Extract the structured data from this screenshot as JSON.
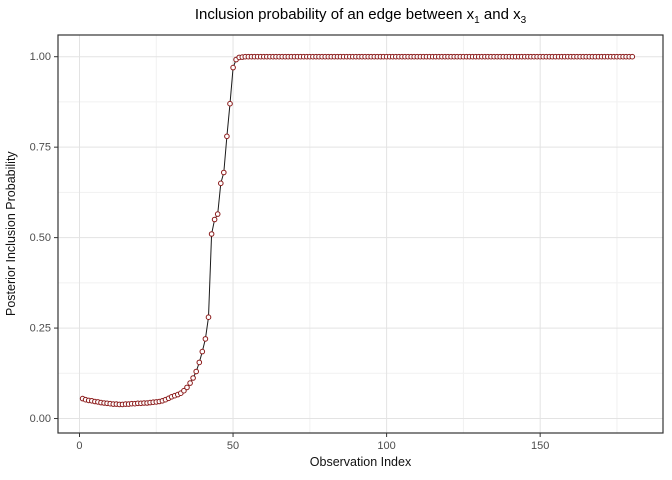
{
  "title": {
    "prefix": "Inclusion probability of an edge between x",
    "sub1": "1",
    "middle": " and x",
    "sub2": "3"
  },
  "chart_data": {
    "type": "line",
    "title": "Inclusion probability of an edge between x_1 and x_3",
    "xlabel": "Observation Index",
    "ylabel": "Posterior Inclusion Probability",
    "marker": "open-circle",
    "legend": "none",
    "grid": true,
    "xlim": [
      -7,
      190
    ],
    "ylim": [
      -0.04,
      1.06
    ],
    "x_major_ticks": [
      0,
      50,
      100,
      150
    ],
    "x_tick_labels": [
      "0",
      "50",
      "100",
      "150"
    ],
    "x_minor_ticks": [
      25,
      75,
      125,
      175
    ],
    "y_major_ticks": [
      0,
      0.25,
      0.5,
      0.75,
      1
    ],
    "y_tick_labels": [
      "0.00",
      "0.25",
      "0.50",
      "0.75",
      "1.00"
    ],
    "y_minor_ticks": [
      0.125,
      0.375,
      0.625,
      0.875
    ],
    "x_start_index": 1,
    "values": [
      0.055,
      0.052,
      0.05,
      0.049,
      0.047,
      0.046,
      0.044,
      0.043,
      0.042,
      0.041,
      0.04,
      0.04,
      0.039,
      0.039,
      0.04,
      0.04,
      0.041,
      0.041,
      0.042,
      0.042,
      0.043,
      0.043,
      0.044,
      0.045,
      0.046,
      0.047,
      0.049,
      0.052,
      0.056,
      0.06,
      0.063,
      0.066,
      0.07,
      0.077,
      0.086,
      0.098,
      0.112,
      0.13,
      0.155,
      0.185,
      0.22,
      0.28,
      0.51,
      0.55,
      0.565,
      0.65,
      0.68,
      0.78,
      0.87,
      0.97,
      0.992,
      0.998,
      0.999,
      1,
      1,
      1,
      1,
      1,
      1,
      1,
      1,
      1,
      1,
      1,
      1,
      1,
      1,
      1,
      1,
      1,
      1,
      1,
      1,
      1,
      1,
      1,
      1,
      1,
      1,
      1,
      1,
      1,
      1,
      1,
      1,
      1,
      1,
      1,
      1,
      1,
      1,
      1,
      1,
      1,
      1,
      1,
      1,
      1,
      1,
      1,
      1,
      1,
      1,
      1,
      1,
      1,
      1,
      1,
      1,
      1,
      1,
      1,
      1,
      1,
      1,
      1,
      1,
      1,
      1,
      1,
      1,
      1,
      1,
      1,
      1,
      1,
      1,
      1,
      1,
      1,
      1,
      1,
      1,
      1,
      1,
      1,
      1,
      1,
      1,
      1,
      1,
      1,
      1,
      1,
      1,
      1,
      1,
      1,
      1,
      1,
      1,
      1,
      1,
      1,
      1,
      1,
      1,
      1,
      1,
      1,
      1,
      1,
      1,
      1,
      1,
      1,
      1,
      1,
      1,
      1,
      1,
      1,
      1,
      1,
      1,
      1,
      1,
      1,
      1,
      1
    ],
    "colors": {
      "point_stroke": "#8B1A1A",
      "point_fill": "#ffffff",
      "line": "#1a1a1a",
      "grid_major": "#e3e3e3",
      "grid_minor": "#f1f1f1",
      "panel_border": "#343434",
      "tick_mark": "#343434",
      "tick_label": "#4d4d4d",
      "background": "#ffffff"
    }
  }
}
